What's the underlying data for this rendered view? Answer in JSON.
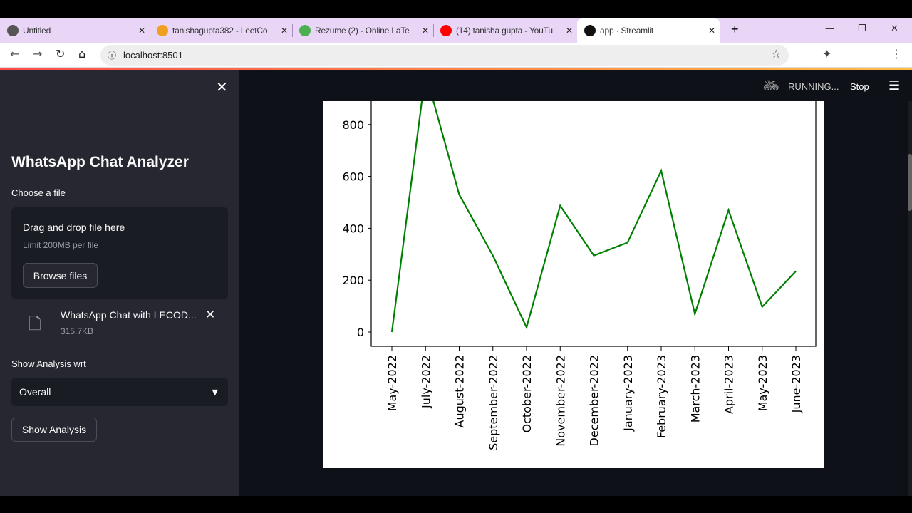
{
  "browser": {
    "tabs": [
      {
        "title": "Untitled",
        "icon": "globe-icon",
        "color": "#555555"
      },
      {
        "title": "tanishagupta382 - LeetCo",
        "icon": "leetcode-icon",
        "color": "#f0a020"
      },
      {
        "title": "Rezume (2) - Online LaTe",
        "icon": "overleaf-icon",
        "color": "#4caf50"
      },
      {
        "title": "(14) tanisha gupta - YouTu",
        "icon": "youtube-icon",
        "color": "#ff0000"
      },
      {
        "title": "app · Streamlit",
        "icon": "streamlit-icon",
        "color": "#111111"
      }
    ],
    "url": "localhost:8501"
  },
  "sidebar": {
    "title": "WhatsApp Chat Analyzer",
    "file_label": "Choose a file",
    "drop_text": "Drag and drop file here",
    "limit_text": "Limit 200MB per file",
    "browse_label": "Browse files",
    "file_name": "WhatsApp Chat with LECOD...",
    "file_size": "315.7KB",
    "analysis_label": "Show Analysis wrt",
    "selected": "Overall",
    "show_button": "Show Analysis"
  },
  "header": {
    "status": "RUNNING...",
    "stop": "Stop"
  },
  "chart_data": {
    "type": "line",
    "categories": [
      "May-2022",
      "July-2022",
      "August-2022",
      "September-2022",
      "October-2022",
      "November-2022",
      "December-2022",
      "January-2023",
      "February-2023",
      "March-2023",
      "April-2023",
      "May-2023",
      "June-2023"
    ],
    "values": [
      0,
      1000,
      530,
      295,
      18,
      487,
      295,
      345,
      622,
      70,
      470,
      97,
      235
    ],
    "yticks": [
      0,
      200,
      400,
      600,
      800
    ],
    "ylim": [
      -60,
      890
    ],
    "color": "#008000",
    "grid": false
  }
}
